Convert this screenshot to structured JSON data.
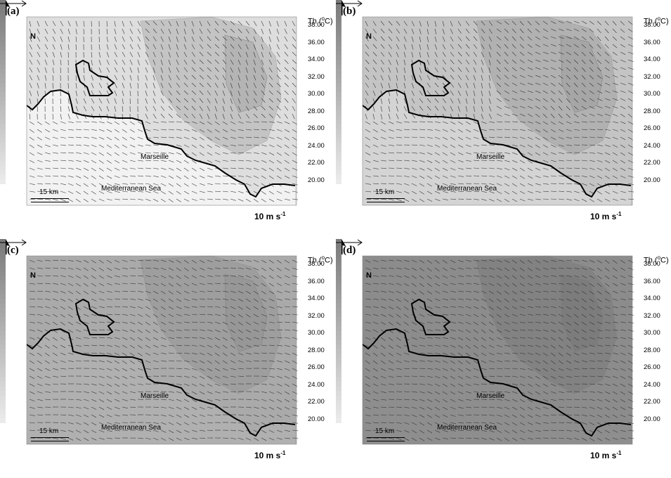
{
  "panels": [
    {
      "id": "a",
      "label": "(a)",
      "shade": "light"
    },
    {
      "id": "b",
      "label": "(b)",
      "shade": "light-mid"
    },
    {
      "id": "c",
      "label": "(c)",
      "shade": "mid"
    },
    {
      "id": "d",
      "label": "(d)",
      "shade": "dark"
    }
  ],
  "colorbar": {
    "title_prefix": "Th (",
    "title_sup": "o",
    "title_suffix": "C)",
    "ticks": [
      "38.00",
      "36.00",
      "34.00",
      "32.00",
      "30.00",
      "28.00",
      "26.00",
      "24.00",
      "22.00",
      "20.00"
    ]
  },
  "north_label": "N",
  "scale_label": "15 km",
  "place_city": "Marseille",
  "place_sea": "Mediterranean Sea",
  "ref_vector": {
    "text": "10 m s",
    "sup": "-1"
  },
  "icons": {
    "north": "north-arrow-icon",
    "ref": "reference-arrow-icon"
  }
}
